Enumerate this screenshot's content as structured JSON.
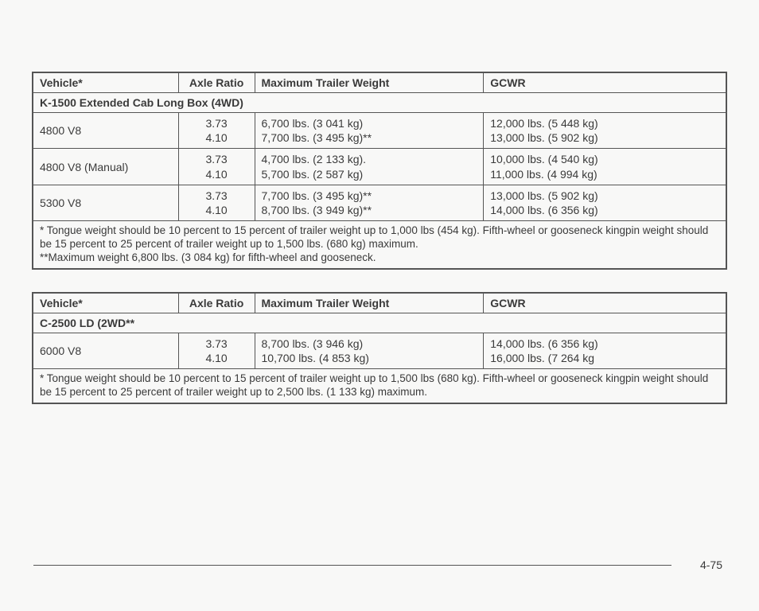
{
  "table1": {
    "headers": [
      "Vehicle*",
      "Axle Ratio",
      "Maximum Trailer Weight",
      "GCWR"
    ],
    "section": "K-1500 Extended Cab Long Box (4WD)",
    "rows": [
      {
        "vehicle": "4800 V8",
        "axle": "3.73\n4.10",
        "mtw": "6,700 lbs. (3 041 kg)\n7,700 lbs. (3 495 kg)**",
        "gcwr": "12,000 lbs. (5 448 kg)\n13,000 lbs. (5 902 kg)"
      },
      {
        "vehicle": "4800 V8 (Manual)",
        "axle": "3.73\n4.10",
        "mtw": "4,700 lbs. (2 133 kg).\n5,700 lbs. (2 587 kg)",
        "gcwr": "10,000 lbs. (4 540 kg)\n11,000 lbs. (4 994 kg)"
      },
      {
        "vehicle": "5300 V8",
        "axle": "3.73\n4.10",
        "mtw": "7,700 lbs. (3 495 kg)**\n8,700 lbs. (3 949 kg)**",
        "gcwr": "13,000 lbs. (5 902 kg)\n14,000 lbs. (6 356 kg)"
      }
    ],
    "footnote": "* Tongue weight should be 10 percent to 15 percent of trailer weight up to 1,000 lbs (454 kg). Fifth-wheel or gooseneck kingpin weight should be 15 percent to 25 percent of trailer weight up to 1,500 lbs. (680 kg) maximum.\n**Maximum weight 6,800 lbs. (3 084 kg) for fifth-wheel and gooseneck."
  },
  "table2": {
    "headers": [
      "Vehicle*",
      "Axle Ratio",
      "Maximum Trailer Weight",
      "GCWR"
    ],
    "section": "C-2500 LD (2WD**",
    "rows": [
      {
        "vehicle": "6000 V8",
        "axle": "3.73\n4.10",
        "mtw": "8,700 lbs. (3 946 kg)\n10,700 lbs. (4 853 kg)",
        "gcwr": "14,000 lbs. (6 356 kg)\n16,000 lbs. (7 264 kg"
      }
    ],
    "footnote": "* Tongue weight should be 10 percent to 15 percent of trailer weight up to 1,500 lbs (680 kg). Fifth-wheel or gooseneck kingpin weight should be 15 percent to 25 percent of trailer weight up to 2,500 lbs. (1 133 kg) maximum."
  },
  "page_number": "4-75"
}
